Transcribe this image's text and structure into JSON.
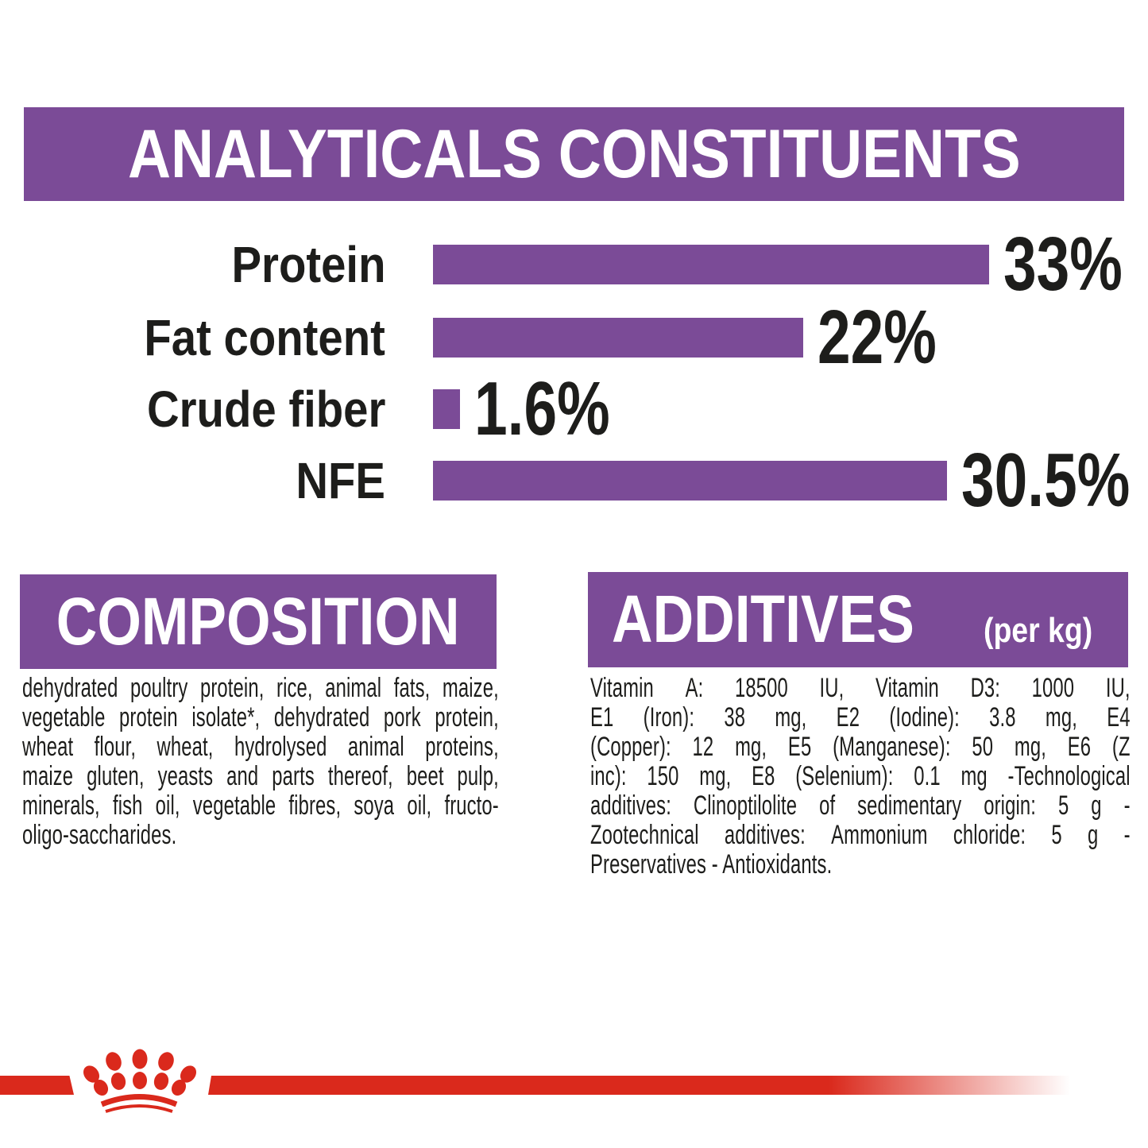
{
  "header": {
    "title": "ANALYTICALS CONSTITUENTS"
  },
  "chart_data": {
    "type": "bar",
    "orientation": "horizontal",
    "title": "ANALYTICALS CONSTITUENTS",
    "categories": [
      "Protein",
      "Fat content",
      "Crude fiber",
      "NFE"
    ],
    "values": [
      33,
      22,
      1.6,
      30.5
    ],
    "value_labels": [
      "33%",
      "22%",
      "1.6%",
      "30.5%"
    ],
    "unit": "%",
    "xlabel": "",
    "ylabel": "",
    "xlim": [
      0,
      35
    ],
    "grid": false,
    "legend": "none",
    "bar_color": "#7b4b97",
    "label_color": "#1d1d1b"
  },
  "composition": {
    "title": "COMPOSITION",
    "text": "dehydrated poultry protein, rice, animal fats, maize, vegetable protein isolate*, dehydrated pork protein, wheat flour, wheat, hydrolysed animal proteins, maize gluten, yeasts and parts thereof, beet pulp, minerals, fish oil, vegetable fibres, soya oil, fructo-oligo-saccharides.",
    "lines": [
      "dehydrated poultry protein, rice, animal fats, maize,",
      "vegetable protein isolate*, dehydrated pork protein,",
      "wheat flour, wheat, hydrolysed animal proteins,",
      "maize gluten, yeasts and parts thereof, beet pulp,",
      "minerals, fish oil, vegetable fibres, soya oil, fructo-",
      "oligo-saccharides."
    ]
  },
  "additives": {
    "title": "ADDITIVES",
    "subtitle": "(per kg)",
    "text": "Vitamin A: 18500 IU, Vitamin D3: 1000 IU, E1 (Iron): 38 mg, E2 (Iodine): 3.8 mg, E4 (Copper): 12 mg, E5 (Manganese): 50 mg, E6 (Zinc): 150 mg, E8 (Selenium): 0.1 mg -Technological additives: Clinoptilolite of sedimentary origin: 5 g - Zootechnical additives: Ammonium chloride: 5 g - Preservatives - Antioxidants.",
    "lines": [
      "Vitamin A: 18500 IU, Vitamin D3: 1000 IU,",
      "E1 (Iron): 38 mg, E2 (Iodine): 3.8 mg, E4",
      "(Copper): 12 mg, E5 (Manganese): 50 mg, E6 (Z",
      "inc): 150 mg, E8 (Selenium): 0.1 mg -Technological",
      "additives: Clinoptilolite of sedimentary origin: 5 g -",
      "Zootechnical additives: Ammonium chloride: 5 g -",
      "Preservatives - Antioxidants."
    ]
  },
  "branding": {
    "logo": "royal-canin-crown",
    "red": "#da291c"
  },
  "colors": {
    "purple": "#7b4b97",
    "text": "#1d1d1b",
    "background": "#ffffff"
  }
}
